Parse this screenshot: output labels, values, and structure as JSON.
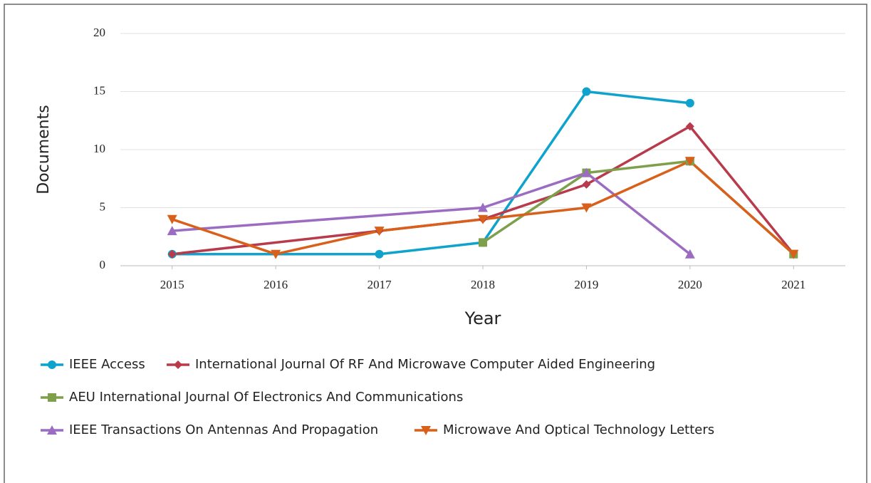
{
  "chart_data": {
    "type": "line",
    "x_label": "Year",
    "y_label": "Documents",
    "xlim": [
      2014.5,
      2021.5
    ],
    "xticks": [
      2015,
      2016,
      2017,
      2018,
      2019,
      2020,
      2021
    ],
    "ylim": [
      0,
      20
    ],
    "yticks": [
      0,
      5,
      10,
      15,
      20
    ],
    "grid": true,
    "series": [
      {
        "name": "IEEE Access",
        "color": "#0ea3cc",
        "marker": "circle",
        "x": [
          2015,
          2017,
          2018,
          2019,
          2020
        ],
        "values": [
          1,
          1,
          2,
          15,
          14
        ]
      },
      {
        "name": "International Journal Of RF And Microwave Computer Aided Engineering",
        "color": "#b83a4b",
        "marker": "diamond",
        "x": [
          2015,
          2017,
          2018,
          2019,
          2020,
          2021
        ],
        "values": [
          1,
          3,
          4,
          7,
          12,
          1
        ]
      },
      {
        "name": "AEU International Journal Of Electronics And Communications",
        "color": "#7e9f4c",
        "marker": "square",
        "x": [
          2018,
          2019,
          2020,
          2021
        ],
        "values": [
          2,
          8,
          9,
          1
        ]
      },
      {
        "name": "IEEE Transactions On Antennas And Propagation",
        "color": "#9c6cc2",
        "marker": "triangle-up",
        "x": [
          2015,
          2018,
          2019,
          2020
        ],
        "values": [
          3,
          5,
          8,
          1
        ]
      },
      {
        "name": "Microwave And Optical Technology Letters",
        "color": "#d9601b",
        "marker": "triangle-down",
        "x": [
          2015,
          2016,
          2017,
          2018,
          2019,
          2020,
          2021
        ],
        "values": [
          4,
          1,
          3,
          4,
          5,
          9,
          1
        ]
      }
    ]
  }
}
